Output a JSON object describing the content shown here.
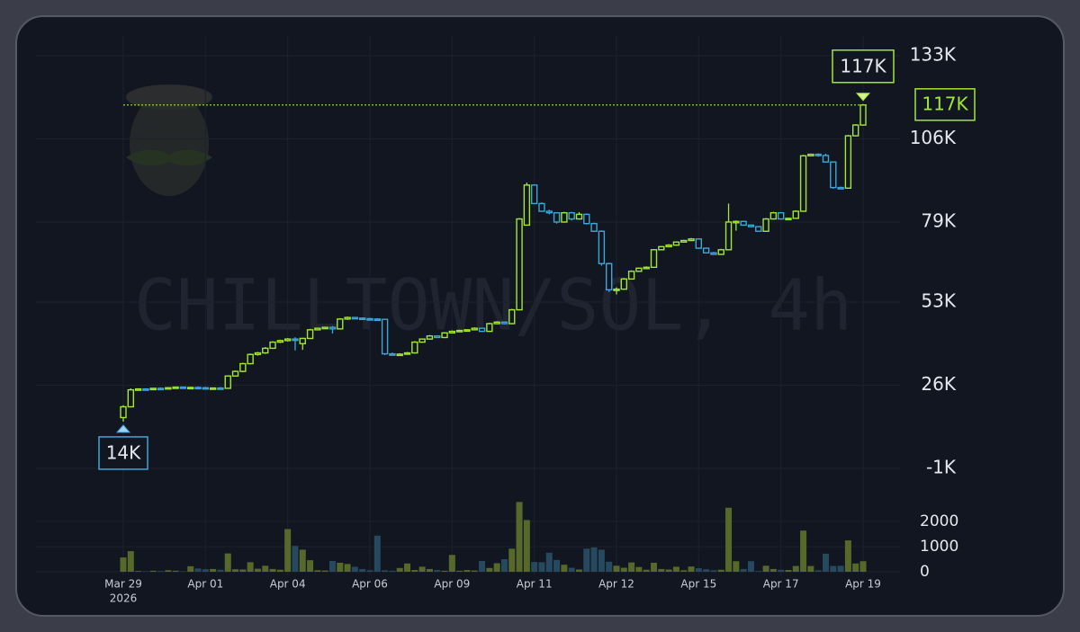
{
  "chart_data": {
    "type": "candlestick",
    "title": "CHILLTOWN/SOL, 4h",
    "categories": [
      "Mar 29",
      null,
      null,
      null,
      null,
      null,
      null,
      null,
      null,
      null,
      null,
      "Apr 01",
      null,
      null,
      null,
      null,
      null,
      null,
      null,
      null,
      null,
      null,
      "Apr 04",
      null,
      null,
      null,
      null,
      null,
      null,
      null,
      null,
      null,
      null,
      "Apr 06",
      null,
      null,
      null,
      null,
      null,
      null,
      null,
      null,
      null,
      null,
      "Apr 09",
      null,
      null,
      null,
      null,
      null,
      null,
      null,
      null,
      null,
      null,
      "Apr 11",
      null,
      null,
      null,
      null,
      null,
      null,
      null,
      null,
      null,
      null,
      "Apr 12",
      null,
      null,
      null,
      null,
      null,
      null,
      null,
      null,
      null,
      null,
      "Apr 15",
      null,
      null,
      null,
      null,
      null,
      null,
      null,
      null,
      null,
      null,
      "Apr 17",
      null,
      null,
      null,
      null,
      null,
      null,
      null,
      null,
      null,
      null,
      "Apr 19"
    ],
    "year_label": "2026",
    "open": [
      15500,
      19000,
      24500,
      24800,
      24600,
      25000,
      24900,
      25200,
      25400,
      25100,
      25300,
      25200,
      25000,
      25100,
      25000,
      29000,
      30500,
      33000,
      36000,
      36500,
      38000,
      40000,
      40500,
      41000,
      39500,
      41200,
      44000,
      44500,
      44800,
      44300,
      47500,
      48000,
      47800,
      47600,
      47500,
      47400,
      36200,
      36000,
      36100,
      36500,
      40000,
      41000,
      42000,
      41500,
      43000,
      43500,
      43800,
      44000,
      44500,
      43500,
      46000,
      46500,
      46000,
      50500,
      78000,
      91000,
      85000,
      82500,
      82000,
      79000,
      82000,
      80000,
      81500,
      78500,
      76000,
      65500,
      57000,
      57200,
      60500,
      63000,
      64000,
      64300,
      70000,
      71000,
      71500,
      72500,
      73000,
      73500,
      70500,
      69000,
      68500,
      70000,
      79000,
      79200,
      78000,
      77500,
      76000,
      80000,
      82000,
      80000,
      80200,
      82500,
      100500,
      101000,
      100600,
      98500,
      90200,
      90000,
      107000,
      110500
    ],
    "high": [
      19500,
      25000,
      25000,
      25000,
      25100,
      25300,
      25400,
      25500,
      25600,
      25500,
      25600,
      25500,
      25300,
      25400,
      29200,
      30800,
      33300,
      36300,
      36800,
      38400,
      40300,
      40800,
      41300,
      41600,
      41400,
      44300,
      44700,
      45000,
      45200,
      47800,
      48300,
      48200,
      48000,
      47900,
      47800,
      47600,
      36600,
      36400,
      36800,
      40300,
      41200,
      42300,
      42200,
      43200,
      43800,
      44000,
      44200,
      44800,
      44700,
      46300,
      46800,
      46700,
      50800,
      80300,
      91800,
      91300,
      85400,
      83000,
      82200,
      82300,
      82300,
      82200,
      81800,
      78800,
      76300,
      65800,
      57800,
      60800,
      63300,
      64200,
      64600,
      70200,
      71200,
      71800,
      72700,
      73200,
      73800,
      73700,
      70700,
      69300,
      70300,
      85000,
      79500,
      79400,
      78200,
      77700,
      80300,
      82300,
      82200,
      80400,
      82800,
      100800,
      101200,
      101300,
      101200,
      98700,
      90500,
      107300,
      110800,
      117300
    ],
    "low": [
      14200,
      18800,
      24300,
      24500,
      24400,
      24800,
      24700,
      25000,
      25000,
      24900,
      25000,
      24900,
      24800,
      24900,
      24900,
      28800,
      30200,
      32800,
      35600,
      36200,
      37800,
      39700,
      40200,
      37300,
      37500,
      41000,
      43800,
      44300,
      42800,
      44100,
      47200,
      47500,
      47400,
      47300,
      47200,
      35800,
      35800,
      35700,
      35900,
      36300,
      39800,
      40800,
      41300,
      41300,
      42800,
      43300,
      43600,
      43800,
      43300,
      43300,
      45800,
      45800,
      45800,
      50300,
      77800,
      84800,
      82300,
      81500,
      78500,
      78800,
      79500,
      79800,
      78200,
      75800,
      64800,
      56300,
      55500,
      57000,
      60300,
      62800,
      63700,
      64100,
      69800,
      70800,
      71300,
      72300,
      72800,
      70300,
      68800,
      68300,
      68300,
      69800,
      76200,
      77800,
      77300,
      75800,
      75800,
      79800,
      79800,
      79600,
      80000,
      82300,
      100300,
      100200,
      98300,
      89800,
      89800,
      89800,
      106800,
      110300
    ],
    "close": [
      19000,
      24500,
      24800,
      24600,
      25000,
      24900,
      25200,
      25400,
      25100,
      25300,
      25200,
      25000,
      25100,
      25000,
      29000,
      30500,
      33000,
      36000,
      36500,
      38000,
      40000,
      40500,
      41000,
      40800,
      41200,
      44000,
      44500,
      44800,
      44300,
      47500,
      48000,
      47800,
      47600,
      47500,
      47400,
      36200,
      36000,
      36100,
      36500,
      40000,
      41000,
      42000,
      41500,
      43000,
      43500,
      43800,
      44000,
      44500,
      43500,
      46000,
      46500,
      46000,
      50500,
      80000,
      91000,
      85000,
      82500,
      82000,
      79000,
      82000,
      80000,
      81500,
      78500,
      76000,
      65500,
      57000,
      57200,
      60500,
      63000,
      64000,
      64300,
      70000,
      71000,
      71500,
      72500,
      73000,
      73500,
      70500,
      69000,
      68500,
      70000,
      79000,
      79200,
      78000,
      77500,
      76000,
      80000,
      82000,
      80000,
      80200,
      82500,
      100500,
      101000,
      100600,
      98500,
      90200,
      90000,
      107000,
      110500,
      117000
    ],
    "volume": [
      570,
      820,
      30,
      20,
      40,
      30,
      60,
      40,
      20,
      220,
      130,
      100,
      110,
      80,
      730,
      100,
      90,
      380,
      120,
      240,
      110,
      80,
      1700,
      1030,
      880,
      460,
      60,
      50,
      430,
      360,
      310,
      200,
      110,
      60,
      1440,
      60,
      40,
      150,
      330,
      70,
      200,
      110,
      70,
      40,
      670,
      40,
      70,
      50,
      430,
      150,
      340,
      500,
      920,
      2780,
      2060,
      390,
      380,
      760,
      470,
      280,
      160,
      90,
      920,
      970,
      880,
      400,
      240,
      160,
      370,
      190,
      80,
      360,
      110,
      90,
      200,
      60,
      210,
      140,
      100,
      60,
      80,
      2550,
      420,
      110,
      420,
      30,
      240,
      110,
      80,
      70,
      230,
      1640,
      230,
      60,
      720,
      230,
      240,
      1250,
      330,
      420
    ],
    "ylim": [
      -1000,
      133000
    ],
    "yticks": [
      {
        "value": -1000,
        "label": "-1K"
      },
      {
        "value": 26000,
        "label": "26K"
      },
      {
        "value": 53000,
        "label": "53K"
      },
      {
        "value": 79000,
        "label": "79K"
      },
      {
        "value": 106000,
        "label": "106K"
      },
      {
        "value": 133000,
        "label": "133K"
      }
    ],
    "volume_ylim": [
      0,
      2900
    ],
    "volume_yticks": [
      0,
      1000,
      2000
    ],
    "up_color": "#a3e635",
    "down_color": "#3ea6d8",
    "volume_up_color": "#56682a",
    "volume_down_color": "#26495f",
    "grid": true,
    "low_marker": {
      "value": 14200,
      "label": "14K"
    },
    "high_marker": {
      "value": 117300,
      "label": "117K"
    },
    "last_price": {
      "value": 117000,
      "label": "117K"
    }
  }
}
